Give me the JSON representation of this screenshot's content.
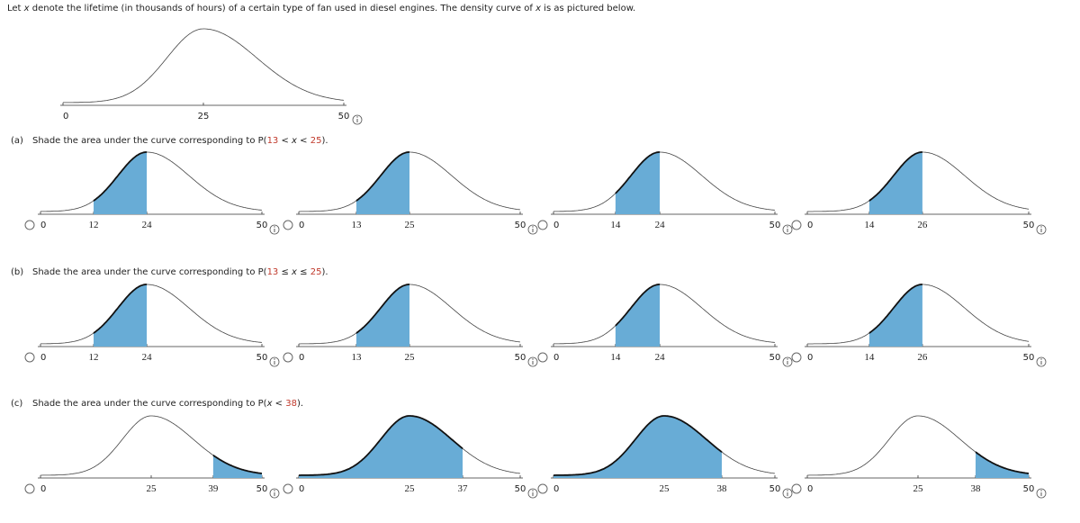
{
  "intro": [
    {
      "text": "Let "
    },
    {
      "text": "x",
      "italic": true
    },
    {
      "text": " denote the lifetime (in thousands of hours) of a certain type of fan used in diesel engines. The density curve of "
    },
    {
      "text": "x",
      "italic": true
    },
    {
      "text": " is as pictured below."
    }
  ],
  "figure": {
    "xlim": [
      0,
      50
    ],
    "ticks": [
      0,
      25,
      50
    ],
    "mode": 25
  },
  "questions": [
    {
      "label": "(a)",
      "prompt": [
        {
          "text": "Shade the area under the curve corresponding to P("
        },
        {
          "text": "13",
          "color": "#c0392b"
        },
        {
          "text": " < "
        },
        {
          "text": "x",
          "italic": true
        },
        {
          "text": " < "
        },
        {
          "text": "25",
          "color": "#c0392b"
        },
        {
          "text": ")."
        }
      ],
      "options": [
        {
          "ticks": [
            0,
            12,
            24,
            50
          ],
          "mode": 24,
          "shade": [
            12,
            24
          ]
        },
        {
          "ticks": [
            0,
            13,
            25,
            50
          ],
          "mode": 25,
          "shade": [
            13,
            25
          ]
        },
        {
          "ticks": [
            0,
            14,
            24,
            50
          ],
          "mode": 24,
          "shade": [
            14,
            24
          ]
        },
        {
          "ticks": [
            0,
            14,
            26,
            50
          ],
          "mode": 26,
          "shade": [
            14,
            26
          ]
        }
      ]
    },
    {
      "label": "(b)",
      "prompt": [
        {
          "text": "Shade the area under the curve corresponding to P("
        },
        {
          "text": "13",
          "color": "#c0392b"
        },
        {
          "text": " ≤ "
        },
        {
          "text": "x",
          "italic": true
        },
        {
          "text": " ≤ "
        },
        {
          "text": "25",
          "color": "#c0392b"
        },
        {
          "text": ")."
        }
      ],
      "options": [
        {
          "ticks": [
            0,
            12,
            24,
            50
          ],
          "mode": 24,
          "shade": [
            12,
            24
          ]
        },
        {
          "ticks": [
            0,
            13,
            25,
            50
          ],
          "mode": 25,
          "shade": [
            13,
            25
          ]
        },
        {
          "ticks": [
            0,
            14,
            24,
            50
          ],
          "mode": 24,
          "shade": [
            14,
            24
          ]
        },
        {
          "ticks": [
            0,
            14,
            26,
            50
          ],
          "mode": 26,
          "shade": [
            14,
            26
          ]
        }
      ]
    },
    {
      "label": "(c)",
      "prompt": [
        {
          "text": "Shade the area under the curve corresponding to P("
        },
        {
          "text": "x",
          "italic": true
        },
        {
          "text": " < "
        },
        {
          "text": "38",
          "color": "#c0392b"
        },
        {
          "text": ")."
        }
      ],
      "options": [
        {
          "ticks": [
            0,
            25,
            39,
            50
          ],
          "mode": 25,
          "shade": [
            39,
            50
          ]
        },
        {
          "ticks": [
            0,
            25,
            37,
            50
          ],
          "mode": 25,
          "shade": [
            0,
            37
          ]
        },
        {
          "ticks": [
            0,
            25,
            38,
            50
          ],
          "mode": 25,
          "shade": [
            0,
            38
          ]
        },
        {
          "ticks": [
            0,
            25,
            38,
            50
          ],
          "mode": 25,
          "shade": [
            38,
            50
          ]
        }
      ]
    }
  ]
}
